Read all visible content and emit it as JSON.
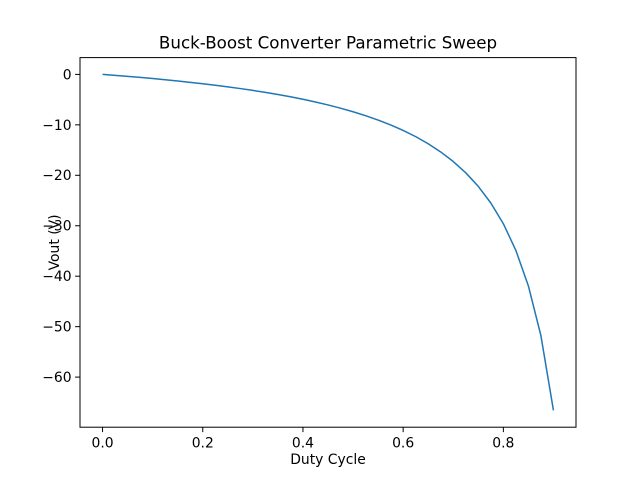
{
  "figure": {
    "background": "#ffffff",
    "text_color": "#000000",
    "spine_color": "#000000"
  },
  "chart_data": {
    "type": "line",
    "title": "Buck-Boost Converter Parametric Sweep",
    "xlabel": "Duty Cycle",
    "ylabel": "Vout (V)",
    "line_color": "#1f77b4",
    "line_width": 1.5,
    "grid": false,
    "legend": null,
    "xlim": [
      -0.045,
      0.945
    ],
    "ylim": [
      -69.93,
      3.33
    ],
    "xticks": {
      "values": [
        0.0,
        0.2,
        0.4,
        0.6,
        0.8
      ],
      "labels": [
        "0.0",
        "0.2",
        "0.4",
        "0.6",
        "0.8"
      ]
    },
    "yticks": {
      "values": [
        0,
        -10,
        -20,
        -30,
        -40,
        -50,
        -60
      ],
      "labels": [
        "0",
        "−10",
        "−20",
        "−30",
        "−40",
        "−50",
        "−60"
      ]
    },
    "x": [
      0,
      0.025,
      0.05,
      0.075,
      0.1,
      0.125,
      0.15,
      0.175,
      0.2,
      0.225,
      0.25,
      0.275,
      0.3,
      0.325,
      0.35,
      0.375,
      0.4,
      0.425,
      0.45,
      0.475,
      0.5,
      0.525,
      0.55,
      0.575,
      0.6,
      0.625,
      0.65,
      0.675,
      0.7,
      0.725,
      0.75,
      0.775,
      0.8,
      0.825,
      0.85,
      0.875,
      0.9
    ],
    "y": [
      0,
      -0.19,
      -0.389,
      -0.6,
      -0.822,
      -1.057,
      -1.306,
      -1.57,
      -1.85,
      -2.148,
      -2.467,
      -2.807,
      -3.171,
      -3.563,
      -3.985,
      -4.44,
      -4.933,
      -5.47,
      -6.055,
      -6.695,
      -7.4,
      -8.179,
      -9.044,
      -10.012,
      -11.1,
      -12.333,
      -13.743,
      -15.369,
      -17.267,
      -19.509,
      -22.2,
      -25.489,
      -29.6,
      -34.886,
      -41.933,
      -51.8,
      -66.6
    ]
  }
}
